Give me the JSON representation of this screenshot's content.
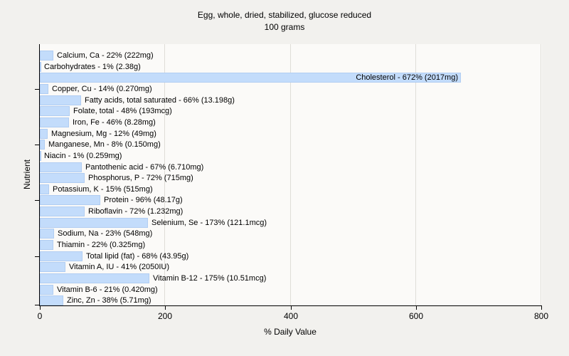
{
  "header": {
    "title": "Egg, whole, dried, stabilized, glucose reduced",
    "subtitle": "100 grams"
  },
  "chart_data": {
    "type": "bar",
    "orientation": "horizontal",
    "title": "Egg, whole, dried, stabilized, glucose reduced",
    "subtitle": "100 grams",
    "xlabel": "% Daily Value",
    "ylabel": "Nutrient",
    "xlim": [
      0,
      800
    ],
    "xticks": [
      0,
      200,
      400,
      600,
      800
    ],
    "grid": "vertical-gridlines-on",
    "legend": "none",
    "bar_color": "#c3dcfb",
    "bar_border_color": "#b1cdf2",
    "label_format": "{name} - {value}% ({amount})",
    "label_inside_index": 2,
    "y_tick_row_indexes": [
      3,
      8,
      13,
      18
    ],
    "categories": [
      "Calcium, Ca",
      "Carbohydrates",
      "Cholesterol",
      "Copper, Cu",
      "Fatty acids, total saturated",
      "Folate, total",
      "Iron, Fe",
      "Magnesium, Mg",
      "Manganese, Mn",
      "Niacin",
      "Pantothenic acid",
      "Phosphorus, P",
      "Potassium, K",
      "Protein",
      "Riboflavin",
      "Selenium, Se",
      "Sodium, Na",
      "Thiamin",
      "Total lipid (fat)",
      "Vitamin A, IU",
      "Vitamin B-12",
      "Vitamin B-6",
      "Zinc, Zn"
    ],
    "values": [
      22,
      1,
      672,
      14,
      66,
      48,
      46,
      12,
      8,
      1,
      67,
      72,
      15,
      96,
      72,
      173,
      23,
      22,
      68,
      41,
      175,
      21,
      38
    ],
    "amounts": [
      "222mg",
      "2.38g",
      "2017mg",
      "0.270mg",
      "13.198g",
      "193mcg",
      "8.28mg",
      "49mg",
      "0.150mg",
      "0.259mg",
      "6.710mg",
      "715mg",
      "515mg",
      "48.17g",
      "1.232mg",
      "121.1mcg",
      "548mg",
      "0.325mg",
      "43.95g",
      "2050IU",
      "10.51mcg",
      "0.420mg",
      "5.71mg"
    ]
  }
}
